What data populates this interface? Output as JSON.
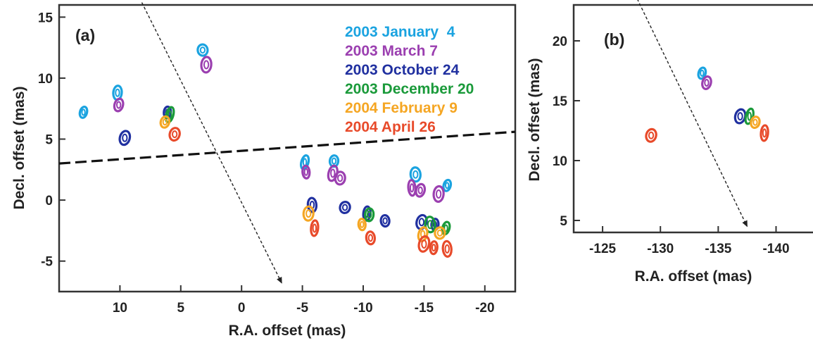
{
  "chart_data": [
    {
      "type": "scatter",
      "panel_label": "(a)",
      "xlabel": "R.A. offset (mas)",
      "ylabel": "Decl. offset (mas)",
      "xlim": [
        15,
        -22.5
      ],
      "ylim": [
        -7.5,
        16
      ],
      "x_reversed": true,
      "xticks": [
        10,
        5,
        0,
        -5,
        -10,
        -15,
        -20
      ],
      "xtick_labels": [
        "10",
        "5",
        "0",
        "-5",
        "-10",
        "-15",
        "-20"
      ],
      "yticks": [
        15,
        10,
        5,
        0,
        -5
      ],
      "ytick_labels": [
        "15",
        "10",
        "5",
        "0",
        "-5"
      ],
      "grid": false,
      "legend_position": "top-right",
      "series": [
        {
          "name": "2003 January  4",
          "color": "#1aa3e0",
          "points": [
            [
              13,
              7.2
            ],
            [
              10.2,
              8.8
            ],
            [
              3.2,
              12.3
            ],
            [
              -5.2,
              3.1
            ],
            [
              -7.6,
              3.2
            ],
            [
              -14.3,
              2.1
            ],
            [
              -16.9,
              1.2
            ]
          ]
        },
        {
          "name": "2003 March 7",
          "color": "#9b3fb0",
          "points": [
            [
              10.1,
              7.8
            ],
            [
              2.9,
              11.1
            ],
            [
              -5.3,
              2.3
            ],
            [
              -7.5,
              2.2
            ],
            [
              -8.1,
              1.8
            ],
            [
              -14.0,
              1.0
            ],
            [
              -14.7,
              0.8
            ],
            [
              -16.2,
              0.5
            ]
          ]
        },
        {
          "name": "2003 October 24",
          "color": "#2030a0",
          "points": [
            [
              9.6,
              5.1
            ],
            [
              6.1,
              7.2
            ],
            [
              -5.8,
              -0.4
            ],
            [
              -8.5,
              -0.6
            ],
            [
              -10.3,
              -1.1
            ],
            [
              -11.8,
              -1.7
            ],
            [
              -14.8,
              -1.8
            ],
            [
              -15.9,
              -2.0
            ]
          ]
        },
        {
          "name": "2003 December 20",
          "color": "#1a9a3a",
          "points": [
            [
              5.9,
              7.0
            ],
            [
              -10.5,
              -1.2
            ],
            [
              -15.5,
              -2.0
            ],
            [
              -16.8,
              -2.3
            ]
          ]
        },
        {
          "name": "2004 February 9",
          "color": "#f5a623",
          "points": [
            [
              6.3,
              6.4
            ],
            [
              -5.5,
              -1.1
            ],
            [
              -9.9,
              -2.0
            ],
            [
              -14.9,
              -2.8
            ],
            [
              -16.3,
              -2.7
            ]
          ]
        },
        {
          "name": "2004 April 26",
          "color": "#e84a2a",
          "points": [
            [
              5.5,
              5.4
            ],
            [
              -6.0,
              -2.3
            ],
            [
              -10.6,
              -3.1
            ],
            [
              -15.0,
              -3.6
            ],
            [
              -15.8,
              -3.9
            ],
            [
              -16.9,
              -4.0
            ]
          ]
        }
      ],
      "lines": [
        {
          "style": "dashed-thick",
          "from": [
            15,
            3.0
          ],
          "to": [
            -22.5,
            5.6
          ]
        },
        {
          "style": "dotted-arrow",
          "from": [
            8.2,
            16.2
          ],
          "to": [
            -3.3,
            -6.8
          ]
        }
      ]
    },
    {
      "type": "scatter",
      "panel_label": "(b)",
      "xlabel": "R.A. offset (mas)",
      "ylabel": "Decl. offset (mas)",
      "xlim": [
        -122.5,
        -143.5
      ],
      "ylim": [
        4,
        23
      ],
      "x_reversed": true,
      "xticks": [
        -125,
        -130,
        -135,
        -140
      ],
      "xtick_labels": [
        "-125",
        "-130",
        "-135",
        "-140"
      ],
      "yticks": [
        20,
        15,
        10,
        5
      ],
      "ytick_labels": [
        "20",
        "15",
        "10",
        "5"
      ],
      "grid": false,
      "series": [
        {
          "name": "2003 January  4",
          "color": "#1aa3e0",
          "points": [
            [
              -133.6,
              17.3
            ]
          ]
        },
        {
          "name": "2003 March 7",
          "color": "#9b3fb0",
          "points": [
            [
              -134.0,
              16.5
            ]
          ]
        },
        {
          "name": "2003 October 24",
          "color": "#2030a0",
          "points": [
            [
              -136.9,
              13.7
            ]
          ]
        },
        {
          "name": "2003 December 20",
          "color": "#1a9a3a",
          "points": [
            [
              -137.7,
              13.7
            ]
          ]
        },
        {
          "name": "2004 February 9",
          "color": "#f5a623",
          "points": [
            [
              -138.2,
              13.2
            ]
          ]
        },
        {
          "name": "2004 April 26",
          "color": "#e84a2a",
          "points": [
            [
              -129.2,
              12.1
            ],
            [
              -139.0,
              12.3
            ]
          ]
        }
      ],
      "lines": [
        {
          "style": "dotted-arrow",
          "from": [
            -128.0,
            23.5
          ],
          "to": [
            -137.5,
            4.5
          ]
        }
      ]
    }
  ]
}
